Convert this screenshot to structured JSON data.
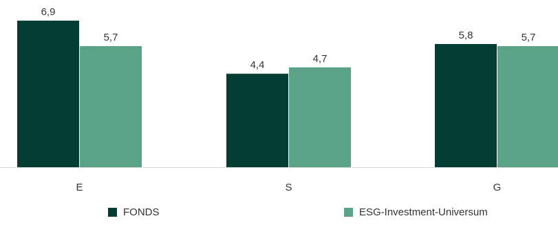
{
  "chart_data": {
    "type": "bar",
    "categories": [
      "E",
      "S",
      "G"
    ],
    "series": [
      {
        "name": "FONDS",
        "values": [
          6.9,
          4.4,
          5.8
        ],
        "labels": [
          "6,9",
          "4,4",
          "5,8"
        ],
        "color": "#033d33"
      },
      {
        "name": "ESG-Investment-Universum",
        "values": [
          5.7,
          4.7,
          5.7
        ],
        "labels": [
          "5,7",
          "4,7",
          "5,7"
        ],
        "color": "#5ba386"
      }
    ],
    "title": "",
    "xlabel": "",
    "ylabel": "",
    "ylim": [
      0,
      6.9
    ],
    "grid": false,
    "legend_position": "bottom"
  },
  "colors": {
    "baseline": "#d9d9d9",
    "text": "#333333"
  }
}
